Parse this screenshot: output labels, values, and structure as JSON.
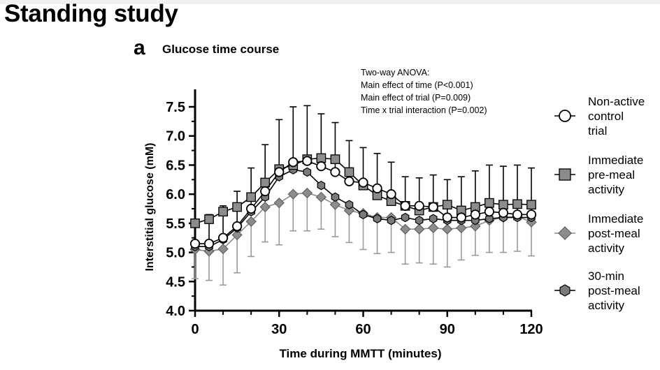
{
  "page": {
    "heading": "Standing study",
    "panel_letter": "a",
    "panel_title": "Glucose time course"
  },
  "chart_data": {
    "type": "line",
    "xlabel": "Time during MMTT (minutes)",
    "ylabel": "Interstitial glucose (mM)",
    "xlim": [
      0,
      120
    ],
    "ylim": [
      4.0,
      7.8
    ],
    "xticks": [
      0,
      30,
      60,
      90,
      120
    ],
    "yticks": [
      4.0,
      4.5,
      5.0,
      5.5,
      6.0,
      6.5,
      7.0,
      7.5
    ],
    "grid": false,
    "legend_position": "right",
    "annotation": [
      "Two-way ANOVA:",
      "Main effect of time (P<0.001)",
      "Main effect of trial (P=0.009)",
      "Time x trial interaction (P=0.002)"
    ],
    "x": [
      0,
      5,
      10,
      15,
      20,
      25,
      30,
      35,
      40,
      45,
      50,
      55,
      60,
      65,
      70,
      75,
      80,
      85,
      90,
      95,
      100,
      105,
      110,
      115,
      120
    ],
    "series": [
      {
        "name": "Non-active control trial",
        "legend_lines": [
          "Non-active",
          "control",
          "trial"
        ],
        "marker": "circle",
        "fill": "#ffffff",
        "line_color": "#000000",
        "values": [
          5.15,
          5.15,
          5.25,
          5.45,
          5.75,
          6.05,
          6.38,
          6.55,
          6.57,
          6.48,
          6.38,
          6.22,
          6.2,
          6.1,
          6.0,
          5.8,
          5.8,
          5.78,
          5.6,
          5.6,
          5.65,
          5.7,
          5.68,
          5.65,
          5.65
        ],
        "error_upper": [
          0.38,
          0.5,
          0.55,
          0.6,
          0.7,
          0.8,
          0.9,
          0.95,
          0.95,
          0.9,
          0.85,
          0.7,
          0.6,
          0.6,
          0.55,
          0.5,
          0.48,
          0.55,
          0.65,
          0.7,
          0.75,
          0.8,
          0.8,
          0.85,
          0.8
        ]
      },
      {
        "name": "Immediate pre-meal activity",
        "legend_lines": [
          "Immediate",
          "pre-meal",
          "activity"
        ],
        "marker": "square",
        "fill": "#8c8c8c",
        "line_color": "#000000",
        "values": [
          5.5,
          5.57,
          5.7,
          5.78,
          5.95,
          6.2,
          6.43,
          6.5,
          6.6,
          6.62,
          6.6,
          6.38,
          6.15,
          5.98,
          5.88,
          5.8,
          5.72,
          5.78,
          5.82,
          5.72,
          5.78,
          5.85,
          5.82,
          5.83,
          5.82
        ]
      },
      {
        "name": "Immediate post-meal activity",
        "legend_lines": [
          "Immediate",
          "post-meal",
          "activity"
        ],
        "marker": "diamond",
        "fill": "#8c8c8c",
        "line_color": "#8c8c8c",
        "values": [
          5.05,
          5.02,
          5.06,
          5.3,
          5.53,
          5.78,
          5.85,
          6.0,
          6.02,
          5.95,
          5.82,
          5.72,
          5.67,
          5.6,
          5.6,
          5.4,
          5.4,
          5.42,
          5.4,
          5.42,
          5.45,
          5.55,
          5.6,
          5.62,
          5.52
        ],
        "error_lower": [
          0.5,
          0.5,
          0.62,
          0.65,
          0.6,
          0.6,
          0.72,
          0.63,
          0.65,
          0.55,
          0.55,
          0.55,
          0.62,
          0.62,
          0.6,
          0.6,
          0.58,
          0.62,
          0.65,
          0.55,
          0.5,
          0.55,
          0.6,
          0.6,
          0.58
        ]
      },
      {
        "name": "30-min post-meal activity",
        "legend_lines": [
          "30-min",
          "post-meal",
          "activity"
        ],
        "marker": "hexagon",
        "fill": "#7a7a7a",
        "line_color": "#000000",
        "values": [
          5.1,
          5.1,
          5.22,
          5.42,
          5.7,
          5.95,
          6.3,
          6.42,
          6.38,
          6.15,
          5.95,
          5.82,
          5.65,
          5.58,
          5.55,
          5.6,
          5.55,
          5.58,
          5.55,
          5.55,
          5.55,
          5.58,
          5.6,
          5.6,
          5.6
        ]
      }
    ]
  }
}
